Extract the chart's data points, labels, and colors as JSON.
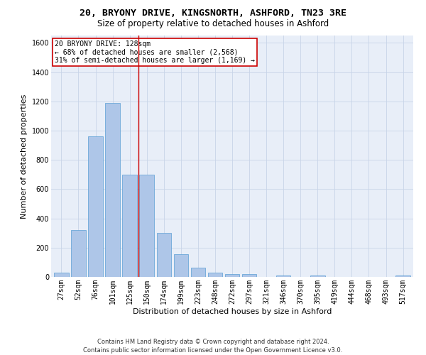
{
  "title_line1": "20, BRYONY DRIVE, KINGSNORTH, ASHFORD, TN23 3RE",
  "title_line2": "Size of property relative to detached houses in Ashford",
  "xlabel": "Distribution of detached houses by size in Ashford",
  "ylabel": "Number of detached properties",
  "footer_line1": "Contains HM Land Registry data © Crown copyright and database right 2024.",
  "footer_line2": "Contains public sector information licensed under the Open Government Licence v3.0.",
  "bar_labels": [
    "27sqm",
    "52sqm",
    "76sqm",
    "101sqm",
    "125sqm",
    "150sqm",
    "174sqm",
    "199sqm",
    "223sqm",
    "248sqm",
    "272sqm",
    "297sqm",
    "321sqm",
    "346sqm",
    "370sqm",
    "395sqm",
    "419sqm",
    "444sqm",
    "468sqm",
    "493sqm",
    "517sqm"
  ],
  "bar_values": [
    30,
    320,
    960,
    1190,
    700,
    700,
    300,
    155,
    65,
    30,
    20,
    20,
    0,
    12,
    0,
    10,
    0,
    0,
    0,
    0,
    12
  ],
  "bar_color": "#aec6e8",
  "bar_edge_color": "#5a9fd4",
  "annotation_box_text": "20 BRYONY DRIVE: 128sqm\n← 68% of detached houses are smaller (2,568)\n31% of semi-detached houses are larger (1,169) →",
  "annotation_box_color": "#ffffff",
  "annotation_box_edge_color": "#cc0000",
  "annotation_text_color": "#000000",
  "vline_x": 4.5,
  "vline_color": "#cc0000",
  "ylim": [
    0,
    1650
  ],
  "yticks": [
    0,
    200,
    400,
    600,
    800,
    1000,
    1200,
    1400,
    1600
  ],
  "grid_color": "#c8d4e8",
  "bg_color": "#e8eef8",
  "fig_bg_color": "#ffffff",
  "title_fontsize": 9.5,
  "subtitle_fontsize": 8.5,
  "axis_label_fontsize": 8,
  "tick_fontsize": 7,
  "footer_fontsize": 6,
  "annotation_fontsize": 7
}
